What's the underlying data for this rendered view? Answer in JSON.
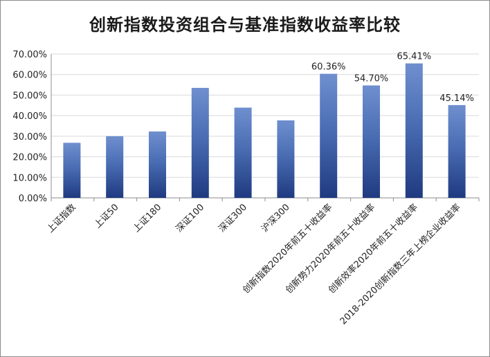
{
  "chart_data": {
    "type": "bar",
    "title": "创新指数投资组合与基准指数收益率比较",
    "categories": [
      "上证指数",
      "上证50",
      "上证180",
      "深证100",
      "深证300",
      "沪深300",
      "创新指数2020年前五十收益率",
      "创新势力2020年前五十收益率",
      "创新效率2020年前五十收益率",
      "2018-2020创新指数三年上榜企业收益率"
    ],
    "values": [
      26.8,
      30.0,
      32.3,
      53.5,
      43.9,
      37.7,
      60.36,
      54.7,
      65.41,
      45.14
    ],
    "data_labels": [
      "",
      "",
      "",
      "",
      "",
      "",
      "60.36%",
      "54.70%",
      "65.41%",
      "45.14%"
    ],
    "y_ticks": [
      "0.00%",
      "10.00%",
      "20.00%",
      "30.00%",
      "40.00%",
      "50.00%",
      "60.00%",
      "70.00%"
    ],
    "ylim": [
      0,
      70
    ],
    "grid": true,
    "legend": "none",
    "colors": {
      "bar_top": "#6f8fcf",
      "bar_mid": "#4a6db3",
      "bar_bottom": "#1f3a80",
      "grid": "#d9d9d9"
    }
  }
}
